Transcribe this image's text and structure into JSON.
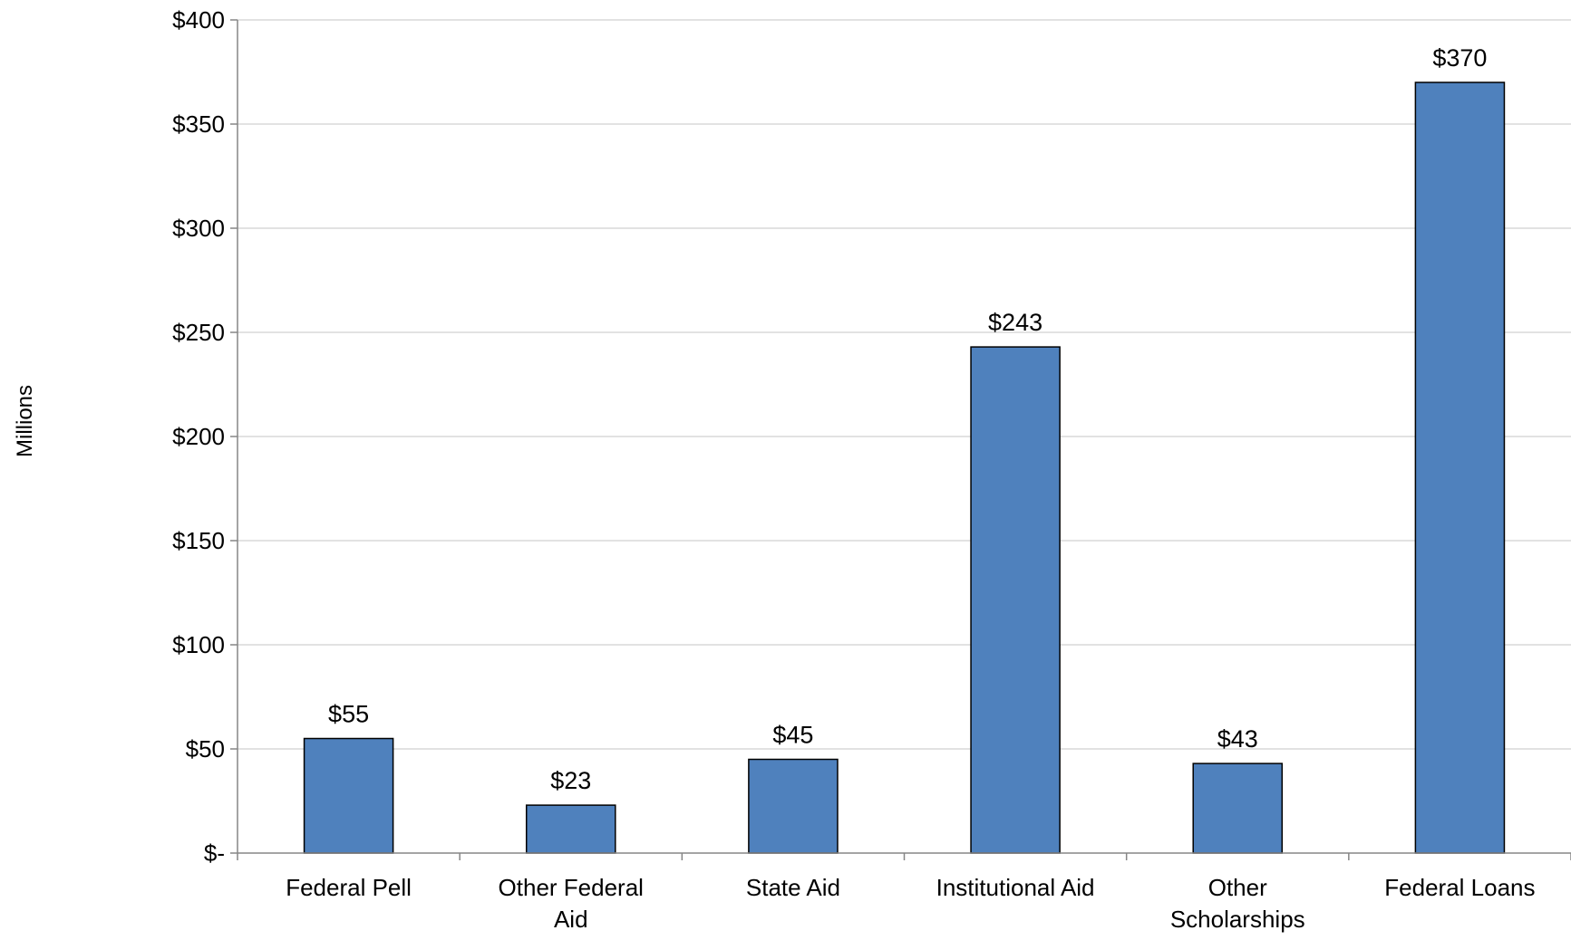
{
  "chart_data": {
    "type": "bar",
    "categories": [
      [
        "Federal Pell"
      ],
      [
        "Other Federal",
        "Aid"
      ],
      [
        "State Aid"
      ],
      [
        "Institutional Aid"
      ],
      [
        "Other",
        "Scholarships"
      ],
      [
        "Federal Loans"
      ]
    ],
    "values": [
      55,
      23,
      45,
      243,
      43,
      370
    ],
    "data_labels": [
      "$55",
      "$23",
      "$45",
      "$243",
      "$43",
      "$370"
    ],
    "ylabel": "Millions",
    "ylim": [
      0,
      400
    ],
    "yticks": [
      0,
      50,
      100,
      150,
      200,
      250,
      300,
      350,
      400
    ],
    "ytick_labels": [
      "$-",
      "$50",
      "$100",
      "$150",
      "$200",
      "$250",
      "$300",
      "$350",
      "$400"
    ],
    "grid": "horizontal",
    "colors": {
      "bar_fill": "#4f81bd",
      "bar_stroke": "#000000",
      "grid": "#d9d9d9",
      "axis": "#868686"
    }
  }
}
